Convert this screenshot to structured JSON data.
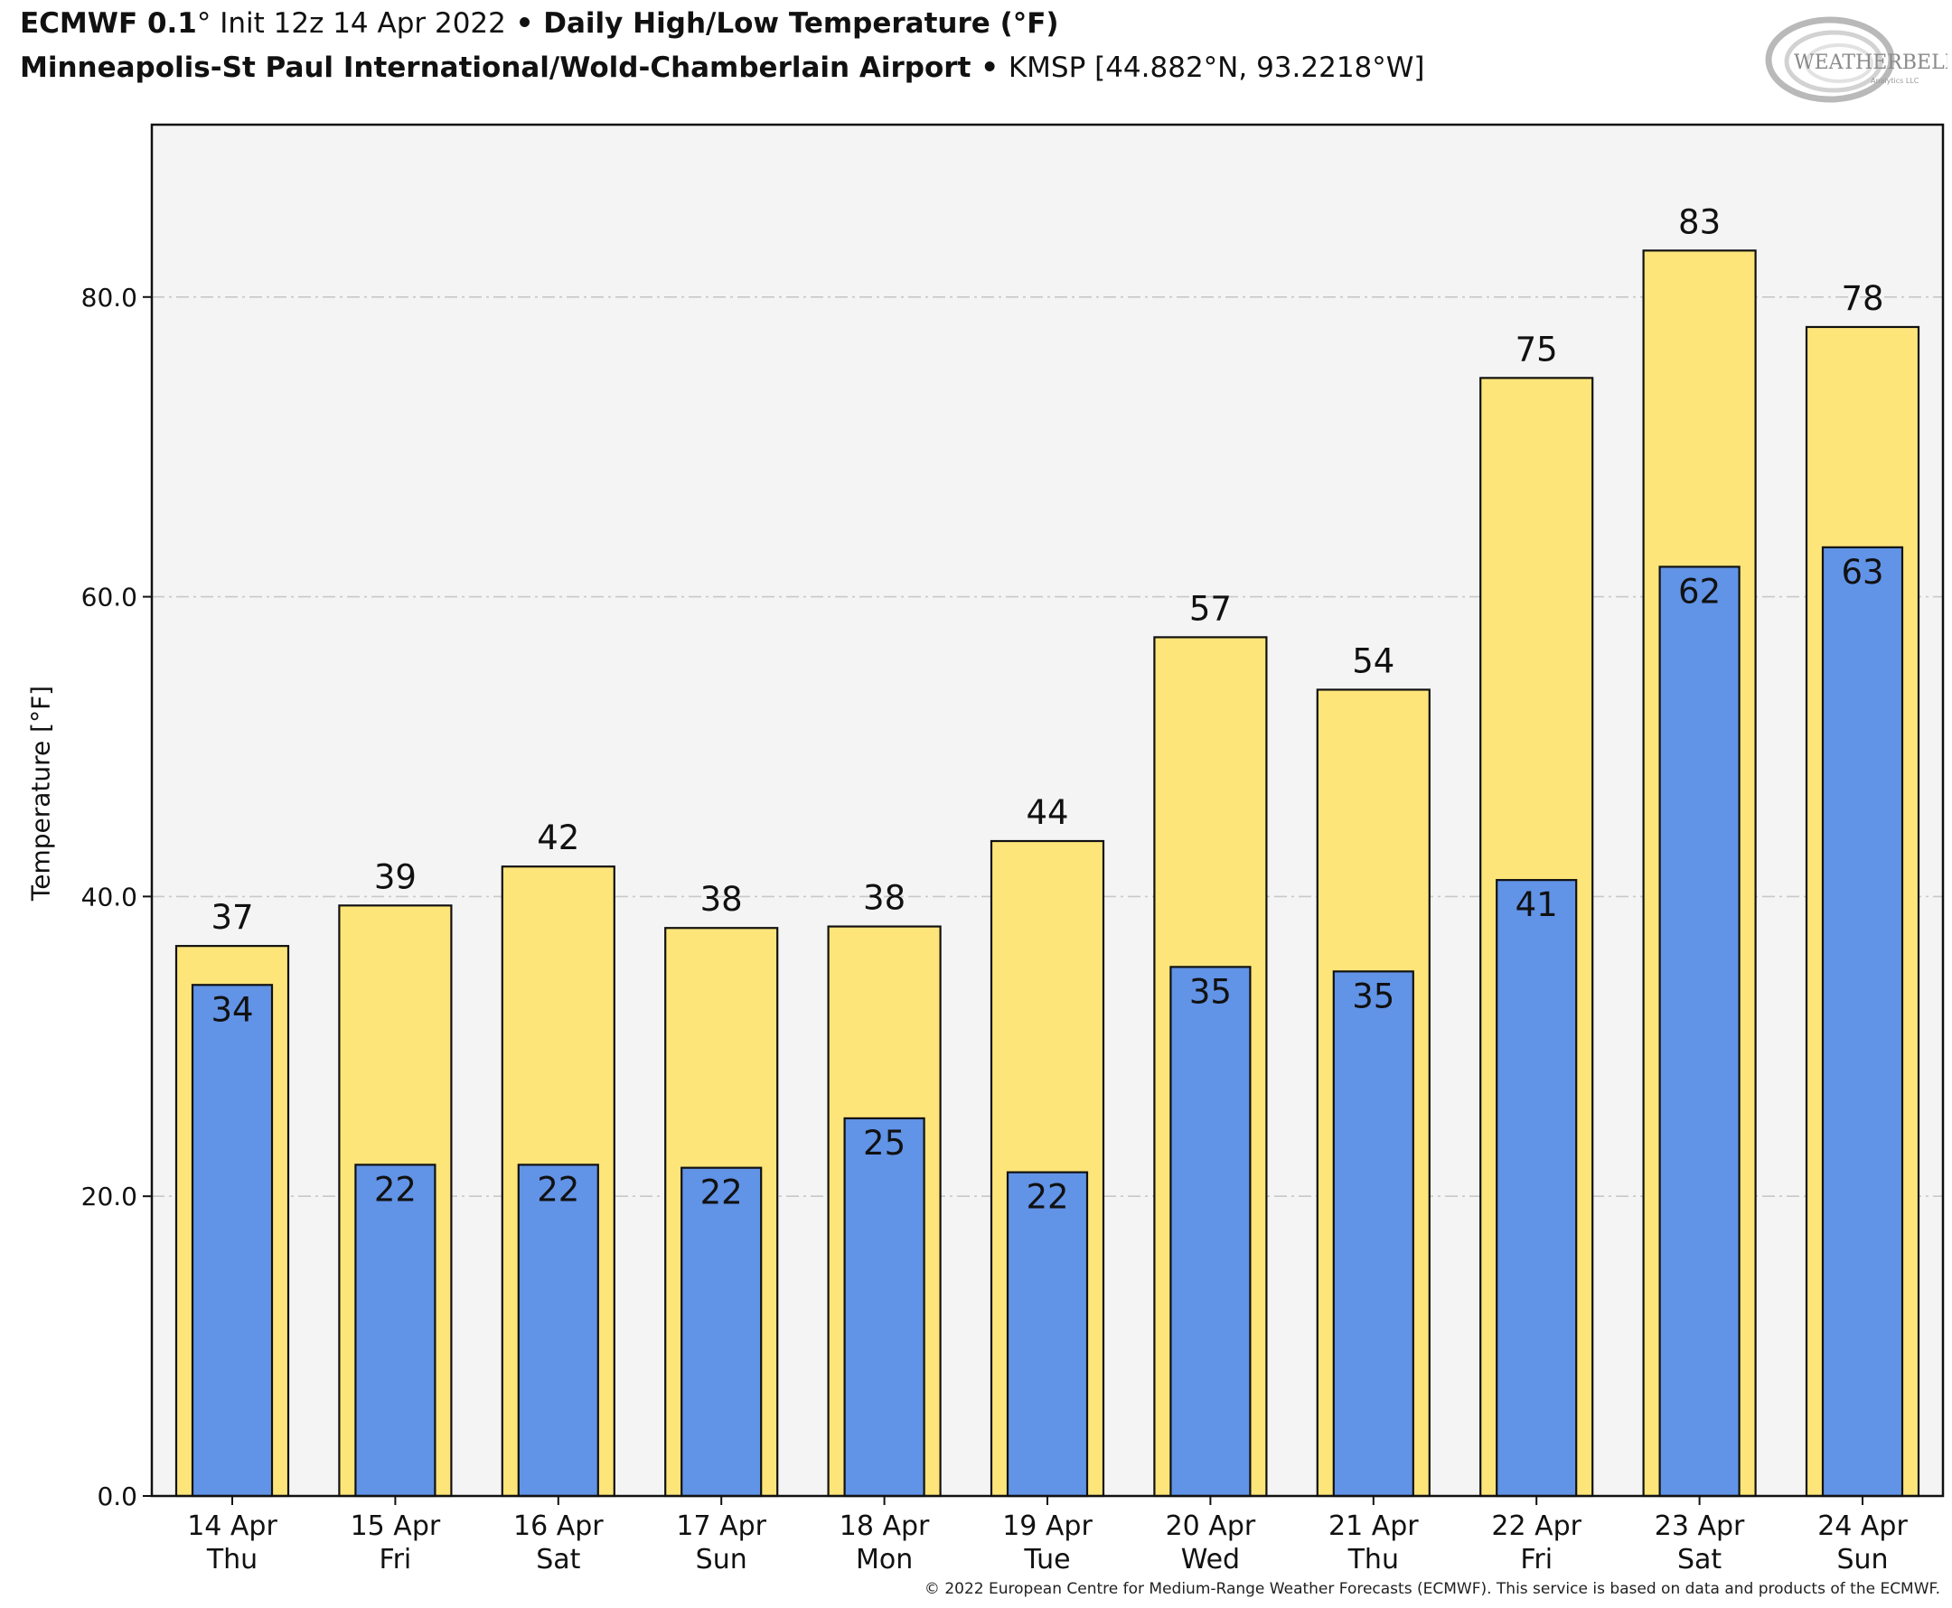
{
  "header": {
    "model": "ECMWF 0.1",
    "deg": "°",
    "init": " Init 12z 14 Apr 2022",
    "sep": " • ",
    "product": "Daily High/Low Temperature (°F)",
    "station_name": "Minneapolis-St Paul International/Wold-Chamberlain Airport",
    "station_info": "KMSP [44.882°N, 93.2218°W]"
  },
  "logo": {
    "text": "WEATHERBELL",
    "sub": "Analytics LLC"
  },
  "footer": {
    "copyright": "© 2022 European Centre for Medium-Range Weather Forecasts (ECMWF). This service is based on data and products of the ECMWF."
  },
  "colors": {
    "high": "#fde57a",
    "low": "#6193e6",
    "plot_bg": "#f4f4f4",
    "grid": "#c8c8c8"
  },
  "chart_data": {
    "type": "bar",
    "ylabel": "Temperature [°F]",
    "ylim": [
      0,
      91.5
    ],
    "yticks": [
      0,
      20,
      40,
      60,
      80
    ],
    "ytick_labels": [
      "0.0",
      "20.0",
      "40.0",
      "60.0",
      "80.0"
    ],
    "grid": true,
    "categories": [
      {
        "date": "14 Apr",
        "dow": "Thu"
      },
      {
        "date": "15 Apr",
        "dow": "Fri"
      },
      {
        "date": "16 Apr",
        "dow": "Sat"
      },
      {
        "date": "17 Apr",
        "dow": "Sun"
      },
      {
        "date": "18 Apr",
        "dow": "Mon"
      },
      {
        "date": "19 Apr",
        "dow": "Tue"
      },
      {
        "date": "20 Apr",
        "dow": "Wed"
      },
      {
        "date": "21 Apr",
        "dow": "Thu"
      },
      {
        "date": "22 Apr",
        "dow": "Fri"
      },
      {
        "date": "23 Apr",
        "dow": "Sat"
      },
      {
        "date": "24 Apr",
        "dow": "Sun"
      }
    ],
    "series": [
      {
        "key": "high",
        "values": [
          36.7,
          39.4,
          42.0,
          37.9,
          38.0,
          43.7,
          57.3,
          53.8,
          74.6,
          83.1,
          78.0
        ],
        "labels": [
          "37",
          "39",
          "42",
          "38",
          "38",
          "44",
          "57",
          "54",
          "75",
          "83",
          "78"
        ]
      },
      {
        "key": "low",
        "values": [
          34.1,
          22.1,
          22.1,
          21.9,
          25.2,
          21.6,
          35.3,
          35.0,
          41.1,
          62.0,
          63.3
        ],
        "labels": [
          "34",
          "22",
          "22",
          "22",
          "25",
          "22",
          "35",
          "35",
          "41",
          "62",
          "63"
        ]
      }
    ]
  }
}
